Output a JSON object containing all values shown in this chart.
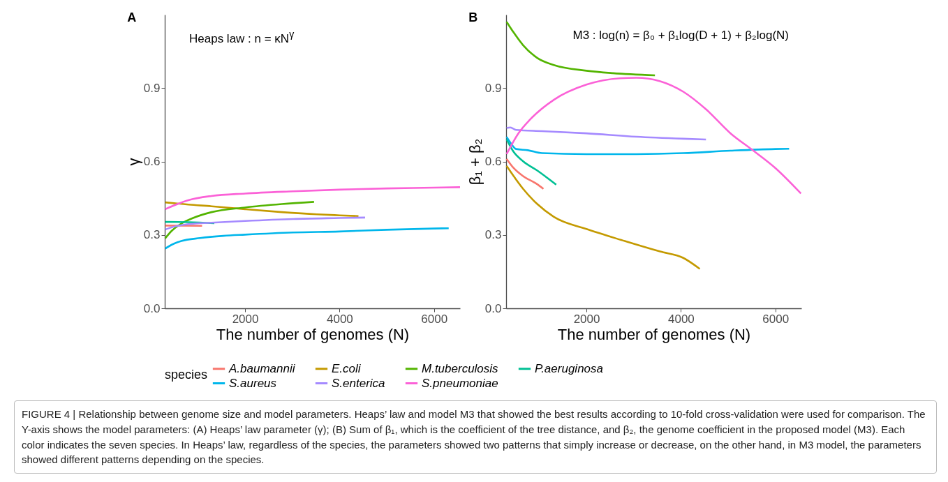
{
  "chart_data": [
    {
      "type": "line",
      "title": "A",
      "xlabel": "The number of genomes (N)",
      "ylabel": "γ",
      "legend_title": "species",
      "legend": "bottom",
      "xlim": [
        300,
        6550
      ],
      "ylim": [
        0,
        1.2
      ],
      "xticks": [
        2000,
        4000,
        6000
      ],
      "yticks": [
        {
          "value": 0,
          "label": "0.0"
        },
        0.3,
        0.6,
        0.9
      ],
      "annotations": [
        "Heaps law :  n = κN$^{γ}$"
      ],
      "series": [
        {
          "name": "A.baumannii",
          "color": "#f8766d",
          "x": [
            310,
            1090
          ],
          "values": [
            0.338,
            0.337
          ]
        },
        {
          "name": "E.coli",
          "color": "#c49a00",
          "x": [
            310,
            800,
            1290,
            2000,
            2780,
            3520,
            4000,
            4400
          ],
          "values": [
            0.433,
            0.424,
            0.417,
            0.405,
            0.393,
            0.384,
            0.38,
            0.377
          ]
        },
        {
          "name": "M.tuberculosis",
          "color": "#53b400",
          "x": [
            310,
            450,
            650,
            900,
            1290,
            2000,
            2780,
            3460
          ],
          "values": [
            0.286,
            0.317,
            0.346,
            0.369,
            0.393,
            0.412,
            0.426,
            0.435
          ]
        },
        {
          "name": "P.aeruginosa",
          "color": "#00c094",
          "x": [
            310,
            800,
            1350
          ],
          "values": [
            0.353,
            0.352,
            0.348
          ]
        },
        {
          "name": "S.aureus",
          "color": "#00b6eb",
          "x": [
            310,
            450,
            650,
            1050,
            1540,
            2000,
            3020,
            4000,
            5000,
            6000,
            6310
          ],
          "values": [
            0.244,
            0.26,
            0.275,
            0.287,
            0.296,
            0.301,
            0.31,
            0.314,
            0.321,
            0.326,
            0.327
          ]
        },
        {
          "name": "S.enterica",
          "color": "#a58aff",
          "x": [
            310,
            450,
            800,
            1290,
            2000,
            3020,
            4000,
            4540
          ],
          "values": [
            0.322,
            0.331,
            0.344,
            0.35,
            0.357,
            0.365,
            0.369,
            0.371
          ]
        },
        {
          "name": "S.pneumoniae",
          "color": "#fb61d7",
          "x": [
            310,
            800,
            1290,
            2000,
            3020,
            4000,
            5000,
            6000,
            6550
          ],
          "values": [
            0.405,
            0.442,
            0.459,
            0.469,
            0.478,
            0.485,
            0.49,
            0.493,
            0.495
          ]
        }
      ]
    },
    {
      "type": "line",
      "title": "B",
      "xlabel": "The number of genomes (N)",
      "ylabel": "β₁ + β₂",
      "legend": "bottom",
      "xlim": [
        300,
        6550
      ],
      "ylim": [
        0,
        1.2
      ],
      "xticks": [
        2000,
        4000,
        6000
      ],
      "yticks": [
        {
          "value": 0,
          "label": "0.0"
        },
        0.3,
        0.6,
        0.9
      ],
      "annotations": [
        "M3 :  log(n) = β₀ + β₁log(D + 1) + β₂log(N)",
        "FIGURE 4 | Relationship between genome size and model parameters. Heaps’ law and model M3 that showed the best results according to 10-fold cross-validation were used for comparison. The Y-axis shows the model parameters: (A) Heaps’ law parameter (γ); (B) Sum of β₁, which is the coefficient of the tree distance, and β₂, the genome coefficient in the proposed model (M3). Each color indicates the seven species. In Heaps’ law, regardless of the species, the parameters showed two patterns that simply increase or decrease, on the other hand, in M3 model, the parameters showed different patterns depending on the species."
      ],
      "series": [
        {
          "name": "A.baumannii",
          "color": "#f8766d",
          "x": [
            310,
            460,
            660,
            960,
            1090
          ],
          "values": [
            0.611,
            0.573,
            0.54,
            0.507,
            0.488
          ]
        },
        {
          "name": "E.coli",
          "color": "#c49a00",
          "x": [
            310,
            460,
            660,
            960,
            1310,
            2000,
            2810,
            3560,
            4050,
            4400
          ],
          "values": [
            0.582,
            0.54,
            0.488,
            0.426,
            0.374,
            0.324,
            0.275,
            0.232,
            0.206,
            0.161
          ]
        },
        {
          "name": "M.tuberculosis",
          "color": "#53b400",
          "x": [
            310,
            460,
            660,
            960,
            1310,
            2000,
            2560,
            3450
          ],
          "values": [
            1.171,
            1.127,
            1.075,
            1.023,
            0.994,
            0.971,
            0.961,
            0.952
          ]
        },
        {
          "name": "P.aeruginosa",
          "color": "#00c094",
          "x": [
            310,
            460,
            660,
            960,
            1360
          ],
          "values": [
            0.691,
            0.639,
            0.601,
            0.563,
            0.505
          ]
        },
        {
          "name": "S.aureus",
          "color": "#00b6eb",
          "x": [
            310,
            390,
            510,
            760,
            1060,
            2000,
            3060,
            4050,
            5050,
            6000,
            6290
          ],
          "values": [
            0.701,
            0.677,
            0.651,
            0.646,
            0.634,
            0.63,
            0.63,
            0.634,
            0.644,
            0.651,
            0.652
          ]
        },
        {
          "name": "S.enterica",
          "color": "#a58aff",
          "x": [
            310,
            390,
            510,
            1060,
            2000,
            3060,
            4050,
            4530
          ],
          "values": [
            0.737,
            0.739,
            0.729,
            0.724,
            0.715,
            0.701,
            0.693,
            0.69
          ]
        },
        {
          "name": "S.pneumoniae",
          "color": "#fb61d7",
          "x": [
            310,
            560,
            810,
            1310,
            2000,
            2710,
            3060,
            3560,
            4050,
            4550,
            5050,
            5500,
            6000,
            6540
          ],
          "values": [
            0.63,
            0.715,
            0.772,
            0.852,
            0.914,
            0.94,
            0.942,
            0.928,
            0.885,
            0.81,
            0.715,
            0.649,
            0.573,
            0.469
          ]
        }
      ]
    }
  ]
}
